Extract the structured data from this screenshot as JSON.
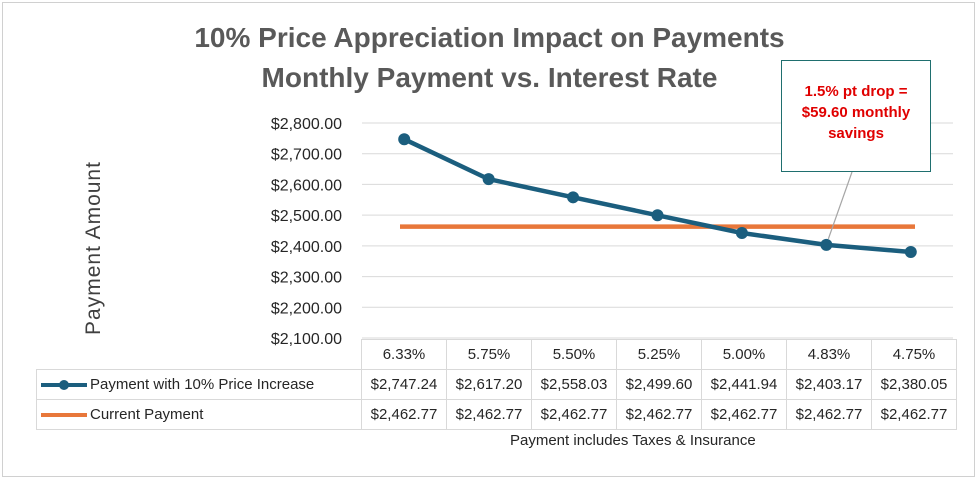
{
  "chart_data": {
    "type": "line",
    "title": "10% Price Appreciation Impact on Payments",
    "subtitle": "Monthly Payment vs. Interest Rate",
    "ylabel": "Payment  Amount",
    "xlabel": "Payment includes Taxes & Insurance",
    "ylim": [
      2100,
      2800
    ],
    "y_ticks": [
      "$2,800.00",
      "$2,700.00",
      "$2,600.00",
      "$2,500.00",
      "$2,400.00",
      "$2,300.00",
      "$2,200.00",
      "$2,100.00"
    ],
    "y_tick_values": [
      2800,
      2700,
      2600,
      2500,
      2400,
      2300,
      2200,
      2100
    ],
    "categories": [
      "6.33%",
      "5.75%",
      "5.50%",
      "5.25%",
      "5.00%",
      "4.83%",
      "4.75%"
    ],
    "series": [
      {
        "name": "Payment with 10% Price Increase",
        "color": "#1b5e7e",
        "values": [
          2747.24,
          2617.2,
          2558.03,
          2499.6,
          2441.94,
          2403.17,
          2380.05
        ],
        "labels": [
          "$2,747.24",
          "$2,617.20",
          "$2,558.03",
          "$2,499.60",
          "$2,441.94",
          "$2,403.17",
          "$2,380.05"
        ]
      },
      {
        "name": "Current Payment",
        "color": "#e8773a",
        "values": [
          2462.77,
          2462.77,
          2462.77,
          2462.77,
          2462.77,
          2462.77,
          2462.77
        ],
        "labels": [
          "$2,462.77",
          "$2,462.77",
          "$2,462.77",
          "$2,462.77",
          "$2,462.77",
          "$2,462.77",
          "$2,462.77"
        ]
      }
    ],
    "grid": true,
    "legend": "data-table",
    "annotation": {
      "lines": [
        "1.5% pt drop =",
        "$59.60 monthly",
        "savings"
      ],
      "target_category": "4.83%",
      "color": "#e00000"
    }
  }
}
